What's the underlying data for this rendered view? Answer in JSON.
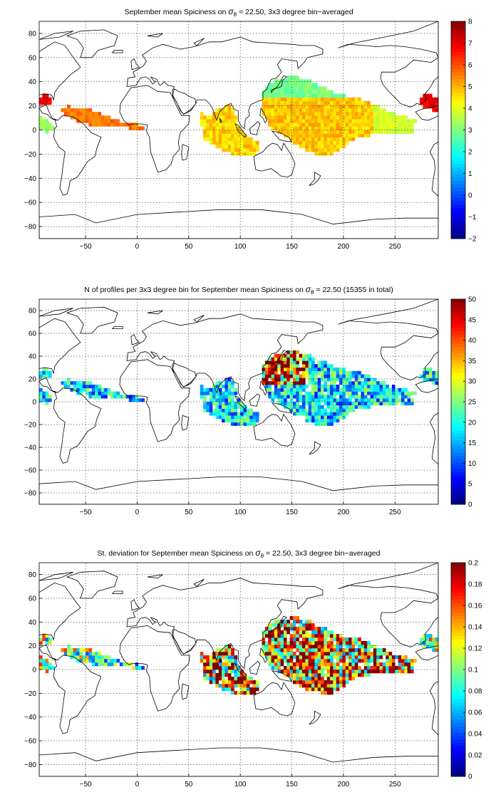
{
  "chart_data": [
    {
      "type": "heatmap",
      "title_prefix": "September mean Spiciness on ",
      "title_symbol": "σ",
      "title_sub": "θ",
      "title_suffix": " = 22.50, 3x3 degree bin−averaged",
      "xticks": [
        "−50",
        "0",
        "50",
        "100",
        "150",
        "200",
        "250"
      ],
      "yticks": [
        "80",
        "60",
        "40",
        "20",
        "0",
        "−20",
        "−40",
        "−60",
        "−80"
      ],
      "xlim": [
        -95,
        292
      ],
      "ylim": [
        -90,
        90
      ],
      "grid": true,
      "colorbar": {
        "min": -2,
        "max": 8,
        "ticks": [
          "8",
          "7",
          "6",
          "5",
          "4",
          "3",
          "2",
          "1",
          "0",
          "−1",
          "−2"
        ]
      }
    },
    {
      "type": "heatmap",
      "title_prefix": "N of profiles per 3x3 degree bin for September mean Spiciness on ",
      "title_symbol": "σ",
      "title_sub": "θ",
      "title_suffix": " = 22.50 (15355 in total)",
      "xticks": [
        "−50",
        "0",
        "50",
        "100",
        "150",
        "200",
        "250"
      ],
      "yticks": [
        "80",
        "60",
        "40",
        "20",
        "0",
        "−20",
        "−40",
        "−60",
        "−80"
      ],
      "xlim": [
        -95,
        292
      ],
      "ylim": [
        -90,
        90
      ],
      "grid": true,
      "colorbar": {
        "min": 0,
        "max": 50,
        "ticks": [
          "50",
          "45",
          "40",
          "35",
          "30",
          "25",
          "20",
          "15",
          "10",
          "5",
          "0"
        ]
      }
    },
    {
      "type": "heatmap",
      "title_prefix": "St. deviation for September mean Spiciness on ",
      "title_symbol": "σ",
      "title_sub": "θ",
      "title_suffix": " = 22.50, 3x3 degree bin−averaged",
      "xticks": [
        "−50",
        "0",
        "50",
        "100",
        "150",
        "200",
        "250"
      ],
      "yticks": [
        "80",
        "60",
        "40",
        "20",
        "0",
        "−20",
        "−40",
        "−60",
        "−80"
      ],
      "xlim": [
        -95,
        292
      ],
      "ylim": [
        -90,
        90
      ],
      "grid": true,
      "colorbar": {
        "min": 0,
        "max": 0.2,
        "ticks": [
          "0.2",
          "0.18",
          "0.16",
          "0.14",
          "0.12",
          "0.1",
          "0.08",
          "0.06",
          "0.04",
          "0.02",
          "0"
        ]
      }
    }
  ]
}
